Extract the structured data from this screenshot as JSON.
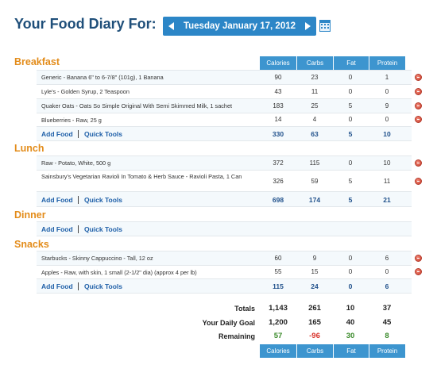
{
  "header": {
    "title": "Your Food Diary For:",
    "date": "Tuesday January 17, 2012",
    "prev_icon": "left-triangle",
    "next_icon": "right-triangle",
    "calendar_icon": "calendar"
  },
  "columns": [
    "Calories",
    "Carbs",
    "Fat",
    "Protein"
  ],
  "meals": [
    {
      "name": "Breakfast",
      "entries": [
        {
          "food": "Generic - Banana 6\" to 6-7/8\" (101g), 1 Banana",
          "values": [
            "90",
            "23",
            "0",
            "1"
          ]
        },
        {
          "food": "Lyle's - Golden Syrup, 2 Teaspoon",
          "values": [
            "43",
            "11",
            "0",
            "0"
          ]
        },
        {
          "food": "Quaker Oats - Oats So Simple Original With Semi Skimmed Milk, 1 sachet",
          "values": [
            "183",
            "25",
            "5",
            "9"
          ]
        },
        {
          "food": "Blueberries - Raw, 25 g",
          "values": [
            "14",
            "4",
            "0",
            "0"
          ]
        }
      ],
      "totals": [
        "330",
        "63",
        "5",
        "10"
      ]
    },
    {
      "name": "Lunch",
      "entries": [
        {
          "food": "Raw - Potato, White, 500 g",
          "values": [
            "372",
            "115",
            "0",
            "10"
          ]
        },
        {
          "food": "Sainsbury's Vegetarian Ravioli In Tomato & Herb Sauce - Ravioli Pasta, 1 Can",
          "values": [
            "326",
            "59",
            "5",
            "11"
          ]
        }
      ],
      "totals": [
        "698",
        "174",
        "5",
        "21"
      ]
    },
    {
      "name": "Dinner",
      "entries": [],
      "totals": []
    },
    {
      "name": "Snacks",
      "entries": [
        {
          "food": "Starbucks - Skinny Cappuccino - Tall, 12 oz",
          "values": [
            "60",
            "9",
            "0",
            "6"
          ]
        },
        {
          "food": "Apples - Raw, with skin, 1 small (2-1/2\" dia) (approx 4 per lb)",
          "values": [
            "55",
            "15",
            "0",
            "0"
          ]
        }
      ],
      "totals": [
        "115",
        "24",
        "0",
        "6"
      ]
    }
  ],
  "links": {
    "add_food": "Add Food",
    "quick_tools": "Quick Tools"
  },
  "summary": {
    "totals_label": "Totals",
    "totals": [
      "1,143",
      "261",
      "10",
      "37"
    ],
    "goal_label": "Your Daily Goal",
    "goal": [
      "1,200",
      "165",
      "40",
      "45"
    ],
    "remaining_label": "Remaining",
    "remaining": [
      "57",
      "-96",
      "30",
      "8"
    ],
    "remaining_status": [
      "under",
      "over",
      "under",
      "under"
    ]
  },
  "colors": {
    "accent_blue": "#3d95cf",
    "meal_orange": "#e38c1a",
    "link_blue": "#1e5fa8",
    "remaining_under": "#3a8a2a",
    "remaining_over": "#d8322a"
  }
}
